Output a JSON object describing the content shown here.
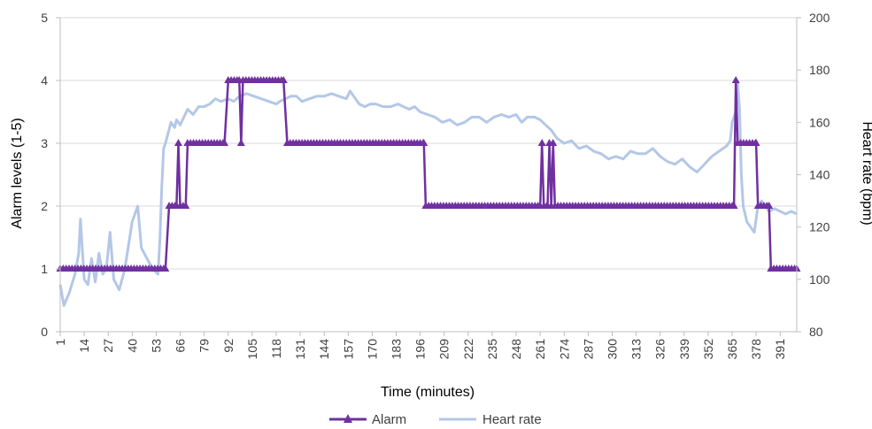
{
  "chart_data": {
    "type": "line",
    "xlabel": "Time (minutes)",
    "ylabel_left": "Alarm levels (1-5)",
    "ylabel_right": "Heart rate (bpm)",
    "x_range": [
      1,
      400
    ],
    "y_left_range": [
      0,
      5
    ],
    "y_right_range": [
      80,
      200
    ],
    "x_ticks": [
      1,
      14,
      27,
      40,
      53,
      66,
      79,
      92,
      105,
      118,
      131,
      144,
      157,
      170,
      183,
      196,
      209,
      222,
      235,
      248,
      261,
      274,
      287,
      300,
      313,
      326,
      339,
      352,
      365,
      378,
      391
    ],
    "y_left_ticks": [
      0,
      1,
      2,
      3,
      4,
      5
    ],
    "y_right_ticks": [
      80,
      100,
      120,
      140,
      160,
      180,
      200
    ],
    "grid": "horizontal",
    "legend_position": "bottom",
    "series": [
      {
        "name": "Alarm",
        "axis": "left",
        "color": "#7030a0",
        "marker": "triangle",
        "points": [
          [
            1,
            1
          ],
          [
            58,
            1
          ],
          [
            60,
            2
          ],
          [
            64,
            2
          ],
          [
            65,
            3
          ],
          [
            66,
            2
          ],
          [
            69,
            2
          ],
          [
            70,
            3
          ],
          [
            90,
            3
          ],
          [
            92,
            4
          ],
          [
            98,
            4
          ],
          [
            99,
            3
          ],
          [
            100,
            4
          ],
          [
            122,
            4
          ],
          [
            124,
            3
          ],
          [
            198,
            3
          ],
          [
            199,
            2
          ],
          [
            261,
            2
          ],
          [
            262,
            3
          ],
          [
            263,
            2
          ],
          [
            265,
            2
          ],
          [
            266,
            3
          ],
          [
            267,
            2
          ],
          [
            268,
            3
          ],
          [
            269,
            2
          ],
          [
            366,
            2
          ],
          [
            367,
            4
          ],
          [
            368,
            3
          ],
          [
            378,
            3
          ],
          [
            379,
            2
          ],
          [
            385,
            2
          ],
          [
            386,
            1
          ],
          [
            400,
            1
          ]
        ]
      },
      {
        "name": "Heart rate",
        "axis": "right",
        "color": "#b4c7e7",
        "points": [
          [
            1,
            98
          ],
          [
            3,
            90
          ],
          [
            6,
            95
          ],
          [
            9,
            102
          ],
          [
            11,
            110
          ],
          [
            12,
            123
          ],
          [
            14,
            100
          ],
          [
            16,
            98
          ],
          [
            18,
            108
          ],
          [
            20,
            99
          ],
          [
            22,
            110
          ],
          [
            24,
            102
          ],
          [
            26,
            104
          ],
          [
            28,
            118
          ],
          [
            30,
            100
          ],
          [
            33,
            96
          ],
          [
            36,
            104
          ],
          [
            40,
            122
          ],
          [
            43,
            128
          ],
          [
            45,
            112
          ],
          [
            48,
            108
          ],
          [
            51,
            104
          ],
          [
            54,
            102
          ],
          [
            55,
            115
          ],
          [
            56,
            135
          ],
          [
            57,
            150
          ],
          [
            58,
            152
          ],
          [
            61,
            160
          ],
          [
            63,
            158
          ],
          [
            64,
            161
          ],
          [
            66,
            159
          ],
          [
            68,
            162
          ],
          [
            70,
            165
          ],
          [
            73,
            163
          ],
          [
            76,
            166
          ],
          [
            79,
            166
          ],
          [
            82,
            167
          ],
          [
            85,
            169
          ],
          [
            88,
            168
          ],
          [
            92,
            169
          ],
          [
            95,
            168
          ],
          [
            98,
            170
          ],
          [
            102,
            171
          ],
          [
            106,
            170
          ],
          [
            110,
            169
          ],
          [
            114,
            168
          ],
          [
            118,
            167
          ],
          [
            120,
            168
          ],
          [
            123,
            169
          ],
          [
            126,
            170
          ],
          [
            129,
            170
          ],
          [
            132,
            168
          ],
          [
            136,
            169
          ],
          [
            140,
            170
          ],
          [
            144,
            170
          ],
          [
            148,
            171
          ],
          [
            152,
            170
          ],
          [
            156,
            169
          ],
          [
            158,
            172
          ],
          [
            160,
            170
          ],
          [
            163,
            167
          ],
          [
            166,
            166
          ],
          [
            169,
            167
          ],
          [
            172,
            167
          ],
          [
            176,
            166
          ],
          [
            180,
            166
          ],
          [
            184,
            167
          ],
          [
            187,
            166
          ],
          [
            190,
            165
          ],
          [
            193,
            166
          ],
          [
            196,
            164
          ],
          [
            200,
            163
          ],
          [
            204,
            162
          ],
          [
            208,
            160
          ],
          [
            212,
            161
          ],
          [
            216,
            159
          ],
          [
            220,
            160
          ],
          [
            224,
            162
          ],
          [
            228,
            162
          ],
          [
            232,
            160
          ],
          [
            236,
            162
          ],
          [
            240,
            163
          ],
          [
            244,
            162
          ],
          [
            248,
            163
          ],
          [
            251,
            160
          ],
          [
            254,
            162
          ],
          [
            258,
            162
          ],
          [
            261,
            161
          ],
          [
            264,
            159
          ],
          [
            267,
            157
          ],
          [
            270,
            154
          ],
          [
            274,
            152
          ],
          [
            278,
            153
          ],
          [
            282,
            150
          ],
          [
            286,
            151
          ],
          [
            290,
            149
          ],
          [
            294,
            148
          ],
          [
            298,
            146
          ],
          [
            302,
            147
          ],
          [
            306,
            146
          ],
          [
            310,
            149
          ],
          [
            314,
            148
          ],
          [
            318,
            148
          ],
          [
            322,
            150
          ],
          [
            326,
            147
          ],
          [
            330,
            145
          ],
          [
            334,
            144
          ],
          [
            338,
            146
          ],
          [
            342,
            143
          ],
          [
            346,
            141
          ],
          [
            350,
            144
          ],
          [
            354,
            147
          ],
          [
            358,
            149
          ],
          [
            362,
            151
          ],
          [
            364,
            153
          ],
          [
            365,
            160
          ],
          [
            366,
            162
          ],
          [
            367,
            164
          ],
          [
            368,
            175
          ],
          [
            369,
            165
          ],
          [
            370,
            140
          ],
          [
            371,
            128
          ],
          [
            373,
            122
          ],
          [
            375,
            120
          ],
          [
            377,
            118
          ],
          [
            379,
            128
          ],
          [
            381,
            130
          ],
          [
            383,
            128
          ],
          [
            385,
            126
          ],
          [
            388,
            127
          ],
          [
            391,
            126
          ],
          [
            394,
            125
          ],
          [
            397,
            126
          ],
          [
            400,
            125
          ]
        ]
      }
    ]
  }
}
